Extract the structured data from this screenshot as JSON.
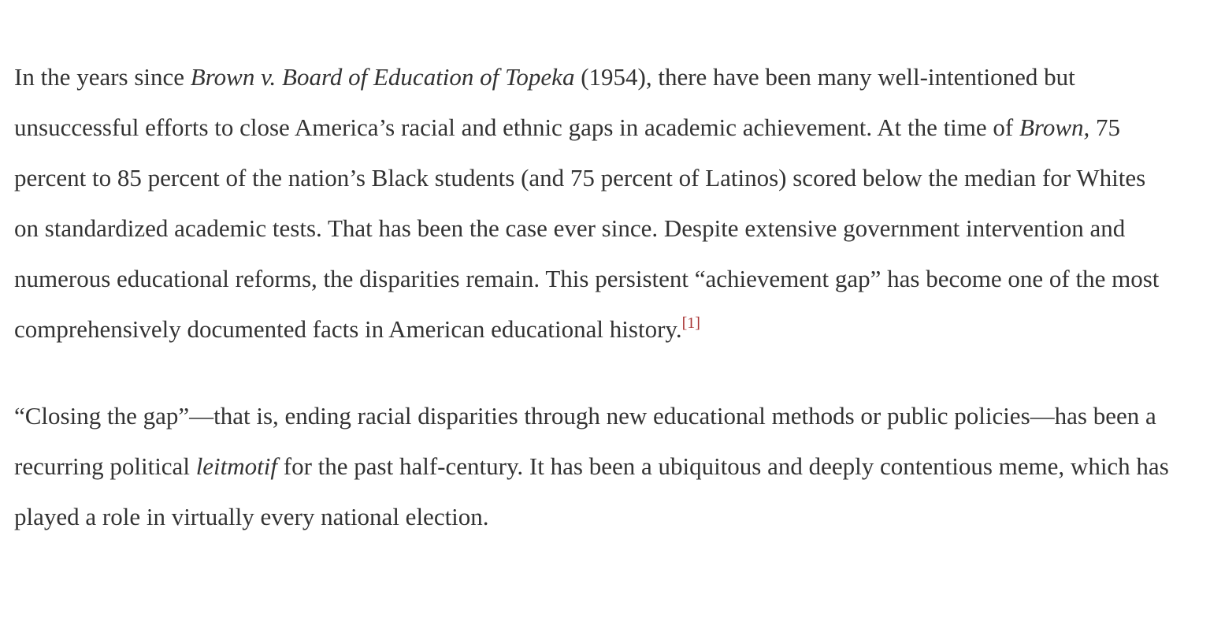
{
  "article": {
    "paragraph_1": {
      "text_1": "In the years since ",
      "case_name": "Brown v. Board of Education of Topeka",
      "text_2": " (1954), there have been many well-intentioned but unsuccessful efforts to close America’s racial and ethnic gaps in academic achievement. At the time of ",
      "case_short": "Brown,",
      "text_3": " 75 percent to 85 percent of the nation’s Black students (and 75 percent of Latinos) scored below the median for Whites on standardized academic tests. That has been the case ever since. Despite extensive government intervention and numerous educational reforms, the disparities remain. This persistent “achievement gap” has become one of the most comprehensively documented facts in American educational history.",
      "footnote": "[1]"
    },
    "paragraph_2": {
      "text_1": "“Closing the gap”—that is, ending racial disparities through new educational methods or public policies—has been a recurring political ",
      "term": "leitmotif",
      "text_2": " for the past half-century. It has been a ubiquitous and deeply contentious meme, which has played a role in virtually every national election."
    },
    "colors": {
      "text": "#333333",
      "footnote_link": "#a83232",
      "background": "#ffffff"
    }
  }
}
